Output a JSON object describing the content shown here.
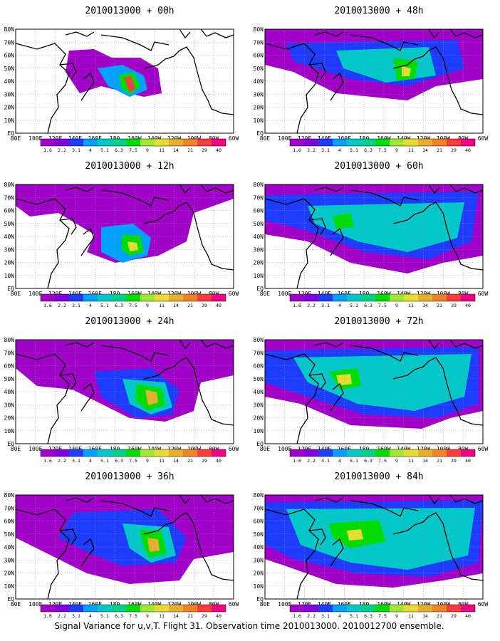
{
  "panels": [
    {
      "title": "2010013000 + 00h"
    },
    {
      "title": "2010013000 + 12h"
    },
    {
      "title": "2010013000 + 24h"
    },
    {
      "title": "2010013000 + 36h"
    },
    {
      "title": "2010013000 + 48h"
    },
    {
      "title": "2010013000 + 60h"
    },
    {
      "title": "2010013000 + 72h"
    },
    {
      "title": "2010013000 + 84h"
    }
  ],
  "map": {
    "lat_labels": [
      "80N",
      "70N",
      "60N",
      "50N",
      "40N",
      "30N",
      "20N",
      "10N",
      "EQ"
    ],
    "lon_labels": [
      "80E",
      "100E",
      "120E",
      "140E",
      "160E",
      "180",
      "160W",
      "140W",
      "120W",
      "100W",
      "80W",
      "60W"
    ]
  },
  "colorbar": {
    "labels": [
      "1.6",
      "2.2",
      "3.1",
      "4",
      "5.1",
      "6.3",
      "7.5",
      "9",
      "11",
      "14",
      "21",
      "29",
      "40"
    ],
    "colors": [
      "#a000c8",
      "#8200dc",
      "#1e3cff",
      "#00a0ff",
      "#00c8c8",
      "#00d28c",
      "#00dc00",
      "#a0e632",
      "#e6dc32",
      "#e6af2d",
      "#f08228",
      "#fa3c3c",
      "#f00082"
    ]
  },
  "footer": "Signal Variance for u,v,T. Flight 31. Observation time 2010013000. 2010012700 ensemble."
}
